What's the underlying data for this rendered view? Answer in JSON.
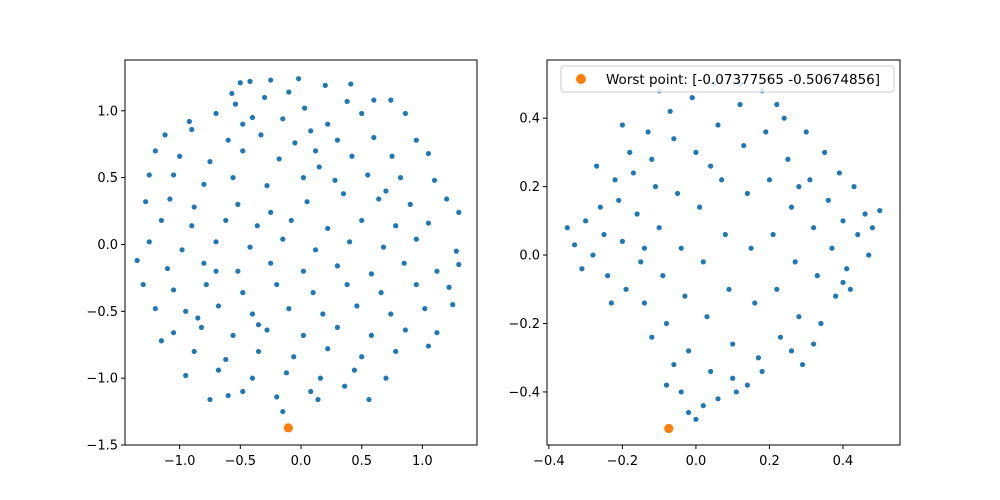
{
  "chart_data": [
    {
      "type": "scatter",
      "title": "",
      "xlabel": "",
      "ylabel": "",
      "xlim": [
        -1.45,
        1.45
      ],
      "ylim": [
        -1.5,
        1.38
      ],
      "xticks": [
        -1.0,
        -0.5,
        0.0,
        0.5,
        1.0
      ],
      "xtick_labels": [
        "−1.0",
        "−0.5",
        "0.0",
        "0.5",
        "1.0"
      ],
      "yticks": [
        -1.5,
        -1.0,
        -0.5,
        0.0,
        0.5,
        1.0
      ],
      "ytick_labels": [
        "−1.5",
        "−1.0",
        "−0.5",
        "0.0",
        "0.5",
        "1.0"
      ],
      "grid": false,
      "series": [
        {
          "role": "points",
          "color": "#1f77b4",
          "points": [
            [
              -0.5,
              1.21
            ],
            [
              -0.42,
              1.22
            ],
            [
              -0.25,
              1.23
            ],
            [
              -0.02,
              1.24
            ],
            [
              0.41,
              1.2
            ],
            [
              -0.57,
              1.13
            ],
            [
              -0.1,
              1.14
            ],
            [
              0.2,
              1.19
            ],
            [
              0.74,
              1.08
            ],
            [
              -0.54,
              1.05
            ],
            [
              -0.3,
              1.1
            ],
            [
              0.03,
              1.02
            ],
            [
              0.38,
              1.07
            ],
            [
              0.6,
              1.08
            ],
            [
              -0.92,
              0.92
            ],
            [
              -0.7,
              0.98
            ],
            [
              -0.48,
              0.9
            ],
            [
              -0.15,
              0.94
            ],
            [
              0.08,
              0.85
            ],
            [
              0.22,
              0.9
            ],
            [
              0.5,
              0.98
            ],
            [
              0.86,
              0.98
            ],
            [
              -1.12,
              0.82
            ],
            [
              -0.9,
              0.86
            ],
            [
              -0.6,
              0.78
            ],
            [
              -0.33,
              0.82
            ],
            [
              -0.05,
              0.76
            ],
            [
              0.3,
              0.78
            ],
            [
              0.6,
              0.8
            ],
            [
              0.95,
              0.78
            ],
            [
              -1.2,
              0.7
            ],
            [
              -1.0,
              0.66
            ],
            [
              -0.75,
              0.62
            ],
            [
              -0.48,
              0.7
            ],
            [
              -0.18,
              0.64
            ],
            [
              0.12,
              0.7
            ],
            [
              0.42,
              0.66
            ],
            [
              0.75,
              0.66
            ],
            [
              1.05,
              0.68
            ],
            [
              -1.25,
              0.52
            ],
            [
              -1.05,
              0.52
            ],
            [
              -0.8,
              0.45
            ],
            [
              -0.56,
              0.5
            ],
            [
              -0.28,
              0.44
            ],
            [
              0.02,
              0.5
            ],
            [
              0.28,
              0.48
            ],
            [
              0.55,
              0.52
            ],
            [
              0.82,
              0.5
            ],
            [
              1.1,
              0.48
            ],
            [
              -1.28,
              0.32
            ],
            [
              -1.08,
              0.34
            ],
            [
              -0.88,
              0.28
            ],
            [
              -0.52,
              0.3
            ],
            [
              -0.25,
              0.24
            ],
            [
              0.05,
              0.32
            ],
            [
              0.35,
              0.38
            ],
            [
              0.64,
              0.34
            ],
            [
              0.9,
              0.3
            ],
            [
              1.2,
              0.34
            ],
            [
              -1.15,
              0.18
            ],
            [
              -0.9,
              0.14
            ],
            [
              -0.62,
              0.18
            ],
            [
              -0.36,
              0.14
            ],
            [
              -0.08,
              0.18
            ],
            [
              0.22,
              0.12
            ],
            [
              0.5,
              0.18
            ],
            [
              0.78,
              0.14
            ],
            [
              1.05,
              0.16
            ],
            [
              1.3,
              0.24
            ],
            [
              -1.25,
              0.02
            ],
            [
              -0.98,
              -0.04
            ],
            [
              -0.7,
              0.02
            ],
            [
              -0.42,
              -0.02
            ],
            [
              -0.15,
              0.04
            ],
            [
              0.12,
              -0.04
            ],
            [
              0.4,
              0.02
            ],
            [
              0.68,
              -0.02
            ],
            [
              0.95,
              0.04
            ],
            [
              1.28,
              -0.05
            ],
            [
              -1.35,
              -0.12
            ],
            [
              -1.1,
              -0.18
            ],
            [
              -0.8,
              -0.14
            ],
            [
              -0.52,
              -0.2
            ],
            [
              -0.25,
              -0.14
            ],
            [
              0.02,
              -0.2
            ],
            [
              0.3,
              -0.16
            ],
            [
              0.58,
              -0.22
            ],
            [
              0.85,
              -0.14
            ],
            [
              1.12,
              -0.2
            ],
            [
              1.3,
              -0.15
            ],
            [
              -1.3,
              -0.3
            ],
            [
              -1.05,
              -0.34
            ],
            [
              -0.78,
              -0.3
            ],
            [
              -0.48,
              -0.36
            ],
            [
              -0.2,
              -0.3
            ],
            [
              0.1,
              -0.36
            ],
            [
              0.38,
              -0.3
            ],
            [
              0.66,
              -0.36
            ],
            [
              0.95,
              -0.3
            ],
            [
              1.22,
              -0.32
            ],
            [
              -1.2,
              -0.48
            ],
            [
              -0.95,
              -0.5
            ],
            [
              -0.68,
              -0.46
            ],
            [
              -0.4,
              -0.52
            ],
            [
              -0.1,
              -0.48
            ],
            [
              0.18,
              -0.52
            ],
            [
              0.46,
              -0.46
            ],
            [
              0.74,
              -0.52
            ],
            [
              1.02,
              -0.48
            ],
            [
              1.25,
              -0.45
            ],
            [
              -1.05,
              -0.66
            ],
            [
              -0.82,
              -0.62
            ],
            [
              -0.56,
              -0.68
            ],
            [
              -0.28,
              -0.64
            ],
            [
              0.02,
              -0.68
            ],
            [
              0.3,
              -0.62
            ],
            [
              0.58,
              -0.68
            ],
            [
              0.86,
              -0.64
            ],
            [
              1.12,
              -0.66
            ],
            [
              -1.15,
              -0.72
            ],
            [
              -0.88,
              -0.8
            ],
            [
              -0.62,
              -0.86
            ],
            [
              -0.35,
              -0.8
            ],
            [
              -0.06,
              -0.84
            ],
            [
              0.22,
              -0.78
            ],
            [
              0.5,
              -0.84
            ],
            [
              0.78,
              -0.8
            ],
            [
              1.05,
              -0.76
            ],
            [
              -0.95,
              -0.98
            ],
            [
              -0.68,
              -0.94
            ],
            [
              -0.4,
              -1.0
            ],
            [
              -0.12,
              -0.96
            ],
            [
              0.16,
              -1.0
            ],
            [
              0.44,
              -0.94
            ],
            [
              0.7,
              -1.0
            ],
            [
              -0.75,
              -1.16
            ],
            [
              -0.48,
              -1.1
            ],
            [
              -0.2,
              -1.14
            ],
            [
              0.08,
              -1.1
            ],
            [
              0.36,
              -1.06
            ],
            [
              0.56,
              -1.16
            ],
            [
              -0.6,
              -1.13
            ],
            [
              -0.15,
              -1.25
            ],
            [
              0.14,
              -1.16
            ],
            [
              -0.35,
              -0.6
            ],
            [
              -0.7,
              -0.2
            ],
            [
              0.7,
              0.4
            ],
            [
              -0.4,
              0.95
            ],
            [
              0.15,
              0.58
            ],
            [
              -0.85,
              -0.55
            ]
          ]
        },
        {
          "role": "worst-point",
          "color": "#ff7f0e",
          "points": [
            [
              -0.1043,
              -1.3715
            ]
          ]
        }
      ]
    },
    {
      "type": "scatter",
      "title": "",
      "xlabel": "",
      "ylabel": "",
      "xlim": [
        -0.405,
        0.555
      ],
      "ylim": [
        -0.555,
        0.57
      ],
      "xticks": [
        -0.4,
        -0.2,
        0.0,
        0.2,
        0.4
      ],
      "xtick_labels": [
        "−0.4",
        "−0.2",
        "0.0",
        "0.2",
        "0.4"
      ],
      "yticks": [
        -0.4,
        -0.2,
        0.0,
        0.2,
        0.4
      ],
      "ytick_labels": [
        "−0.4",
        "−0.2",
        "0.0",
        "0.2",
        "0.4"
      ],
      "grid": false,
      "legend": {
        "location": "top-right",
        "entries": [
          "Worst point: [-0.07377565 -0.50674856]"
        ]
      },
      "series": [
        {
          "role": "points",
          "color": "#1f77b4",
          "points": [
            [
              -0.35,
              0.08
            ],
            [
              -0.33,
              0.03
            ],
            [
              -0.3,
              0.1
            ],
            [
              -0.28,
              0.0
            ],
            [
              -0.26,
              0.14
            ],
            [
              -0.25,
              0.06
            ],
            [
              -0.24,
              -0.06
            ],
            [
              -0.22,
              0.22
            ],
            [
              -0.21,
              0.16
            ],
            [
              -0.2,
              0.04
            ],
            [
              -0.19,
              -0.1
            ],
            [
              -0.18,
              0.3
            ],
            [
              -0.17,
              0.24
            ],
            [
              -0.16,
              0.12
            ],
            [
              -0.15,
              -0.02
            ],
            [
              -0.14,
              -0.14
            ],
            [
              -0.13,
              0.36
            ],
            [
              -0.12,
              0.28
            ],
            [
              -0.11,
              0.2
            ],
            [
              -0.1,
              0.08
            ],
            [
              -0.09,
              -0.06
            ],
            [
              -0.08,
              -0.2
            ],
            [
              -0.07,
              0.42
            ],
            [
              -0.06,
              0.34
            ],
            [
              -0.05,
              0.18
            ],
            [
              -0.04,
              0.02
            ],
            [
              -0.03,
              -0.12
            ],
            [
              -0.02,
              -0.28
            ],
            [
              -0.01,
              0.46
            ],
            [
              0.0,
              0.3
            ],
            [
              0.01,
              0.14
            ],
            [
              0.02,
              -0.02
            ],
            [
              0.03,
              -0.18
            ],
            [
              0.04,
              -0.34
            ],
            [
              0.05,
              0.5
            ],
            [
              0.06,
              0.38
            ],
            [
              0.07,
              0.22
            ],
            [
              0.08,
              0.06
            ],
            [
              0.09,
              -0.1
            ],
            [
              0.1,
              -0.26
            ],
            [
              0.11,
              -0.4
            ],
            [
              0.12,
              0.44
            ],
            [
              0.13,
              0.32
            ],
            [
              0.14,
              0.18
            ],
            [
              0.15,
              0.02
            ],
            [
              0.16,
              -0.14
            ],
            [
              0.17,
              -0.3
            ],
            [
              0.18,
              0.48
            ],
            [
              0.19,
              0.36
            ],
            [
              0.2,
              0.22
            ],
            [
              0.21,
              0.06
            ],
            [
              0.22,
              -0.1
            ],
            [
              0.23,
              -0.24
            ],
            [
              0.24,
              0.4
            ],
            [
              0.25,
              0.28
            ],
            [
              0.26,
              0.14
            ],
            [
              0.27,
              -0.02
            ],
            [
              0.28,
              -0.18
            ],
            [
              0.29,
              -0.32
            ],
            [
              0.3,
              0.36
            ],
            [
              0.31,
              0.22
            ],
            [
              0.32,
              0.08
            ],
            [
              0.33,
              -0.06
            ],
            [
              0.34,
              -0.2
            ],
            [
              0.35,
              0.3
            ],
            [
              0.36,
              0.16
            ],
            [
              0.37,
              0.02
            ],
            [
              0.38,
              -0.12
            ],
            [
              0.39,
              0.24
            ],
            [
              0.4,
              0.1
            ],
            [
              0.41,
              -0.04
            ],
            [
              0.42,
              -0.1
            ],
            [
              0.43,
              0.2
            ],
            [
              0.44,
              0.06
            ],
            [
              0.46,
              0.12
            ],
            [
              0.47,
              0.0
            ],
            [
              0.48,
              0.08
            ],
            [
              0.5,
              0.13
            ],
            [
              -0.31,
              -0.04
            ],
            [
              -0.27,
              0.26
            ],
            [
              -0.23,
              -0.14
            ],
            [
              -0.12,
              -0.24
            ],
            [
              -0.06,
              -0.32
            ],
            [
              -0.04,
              -0.4
            ],
            [
              -0.02,
              -0.46
            ],
            [
              0.0,
              -0.48
            ],
            [
              0.02,
              -0.44
            ],
            [
              0.06,
              -0.42
            ],
            [
              0.1,
              -0.36
            ],
            [
              0.14,
              -0.38
            ],
            [
              0.18,
              -0.34
            ],
            [
              -0.1,
              0.48
            ],
            [
              0.12,
              0.5
            ],
            [
              0.22,
              0.44
            ],
            [
              -0.2,
              0.38
            ],
            [
              0.32,
              -0.26
            ],
            [
              -0.08,
              -0.38
            ],
            [
              0.26,
              -0.28
            ],
            [
              0.04,
              0.26
            ],
            [
              -0.14,
              0.02
            ],
            [
              0.28,
              0.2
            ],
            [
              0.4,
              -0.08
            ]
          ]
        },
        {
          "role": "worst-point",
          "color": "#ff7f0e",
          "points": [
            [
              -0.07377565,
              -0.50674856
            ]
          ]
        }
      ]
    }
  ]
}
